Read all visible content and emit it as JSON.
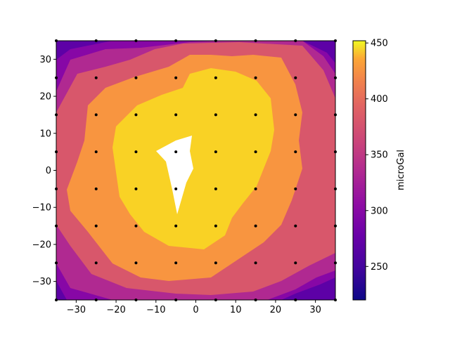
{
  "chart_data": {
    "type": "heatmap",
    "subtype": "filled-contour",
    "title": "",
    "xlabel": "",
    "ylabel": "",
    "xlim": [
      -35,
      35
    ],
    "ylim": [
      -35,
      35
    ],
    "x_ticks": [
      -30,
      -20,
      -10,
      0,
      10,
      20,
      30
    ],
    "y_ticks": [
      -30,
      -20,
      -10,
      0,
      10,
      20,
      30
    ],
    "grid": false,
    "colormap": "plasma",
    "colorbar": {
      "label": "microGal",
      "range": [
        220,
        452
      ],
      "ticks": [
        250,
        300,
        350,
        400,
        450
      ],
      "position": "right"
    },
    "contour_levels": [
      {
        "level": 260,
        "color": "#5d01a6"
      },
      {
        "level": 290,
        "color": "#8707a6"
      },
      {
        "level": 315,
        "color": "#b02991"
      },
      {
        "level": 345,
        "color": "#d8576b"
      },
      {
        "level": 385,
        "color": "#f89540"
      },
      {
        "level": 420,
        "color": "#f9d225"
      },
      {
        "level": 452,
        "color": "#ffffff"
      }
    ],
    "station_points": {
      "x": [
        -35,
        -25,
        -15,
        -5,
        5,
        15,
        25,
        35
      ],
      "y": [
        35,
        25,
        15,
        5,
        -5,
        -15,
        -25,
        -35
      ]
    }
  }
}
